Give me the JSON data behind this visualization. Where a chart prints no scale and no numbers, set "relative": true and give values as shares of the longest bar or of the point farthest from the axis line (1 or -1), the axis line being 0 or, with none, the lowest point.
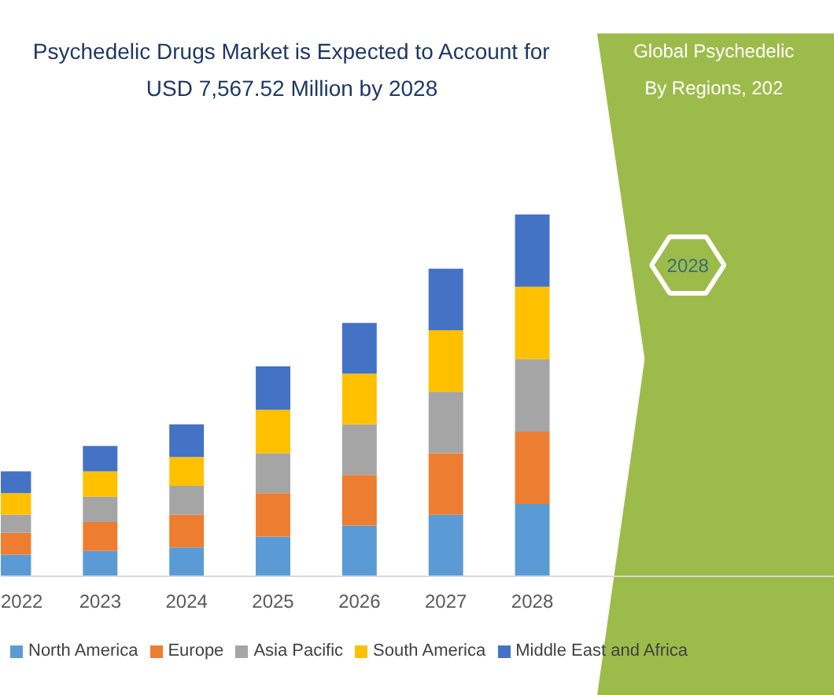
{
  "chart_data": {
    "type": "bar",
    "stacked": true,
    "relative": true,
    "title": "Psychedelic Drugs Market is Expected to Account for USD 7,567.52 Million by 2028",
    "annotations": [
      "Global Psychedelic",
      "By Regions, 202",
      "2028"
    ],
    "categories": [
      "2022",
      "2023",
      "2024",
      "2025",
      "2026",
      "2027",
      "2028"
    ],
    "series": [
      {
        "name": "North America",
        "color": "#5b9bd5",
        "values": [
          0.06,
          0.07,
          0.08,
          0.11,
          0.14,
          0.17,
          0.2
        ]
      },
      {
        "name": "Europe",
        "color": "#ed7d31",
        "values": [
          0.06,
          0.08,
          0.09,
          0.12,
          0.14,
          0.17,
          0.2
        ]
      },
      {
        "name": "Asia Pacific",
        "color": "#a5a5a5",
        "values": [
          0.05,
          0.07,
          0.08,
          0.11,
          0.14,
          0.17,
          0.2
        ]
      },
      {
        "name": "South America",
        "color": "#ffc000",
        "values": [
          0.06,
          0.07,
          0.08,
          0.12,
          0.14,
          0.17,
          0.2
        ]
      },
      {
        "name": "Middle East and Africa",
        "color": "#4472c4",
        "values": [
          0.06,
          0.07,
          0.09,
          0.12,
          0.14,
          0.17,
          0.2
        ]
      }
    ],
    "grid": false,
    "legend": "bottom"
  }
}
